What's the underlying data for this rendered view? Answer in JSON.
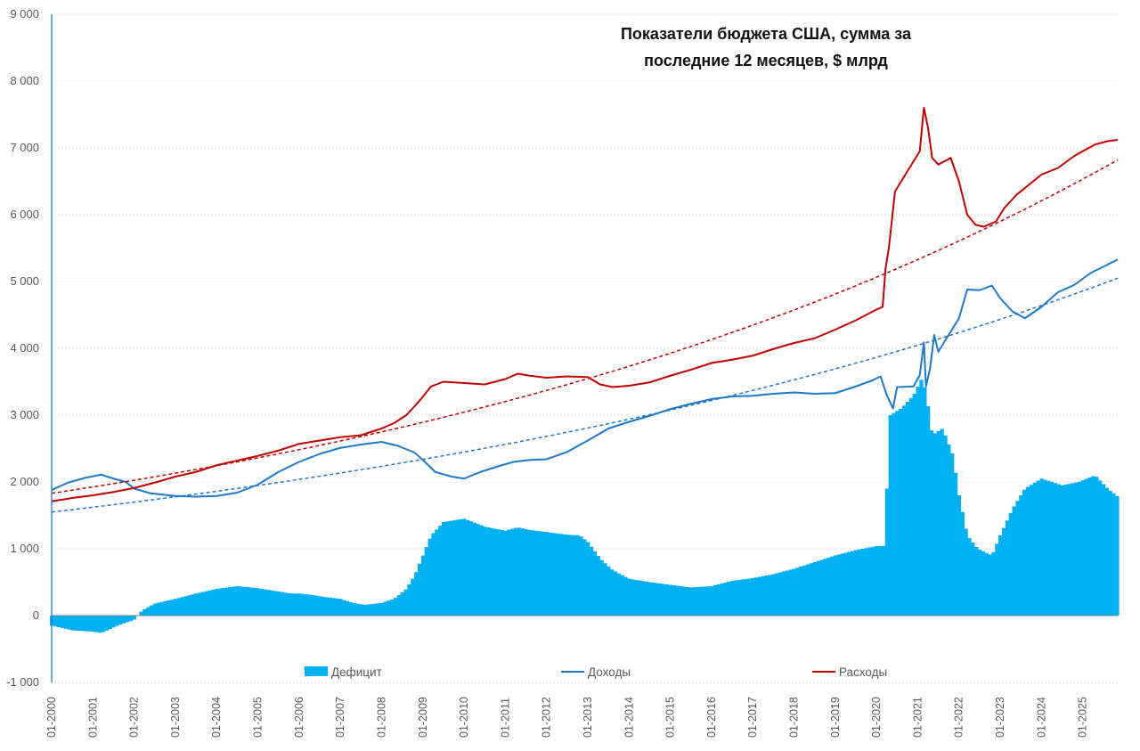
{
  "chart_data": {
    "type": "bar+line",
    "title_lines": [
      "Показатели бюджета США, сумма за",
      "последние 12 месяцев, $ млрд"
    ],
    "ylim": [
      -1000,
      9000
    ],
    "y_ticks": [
      {
        "value": 9000,
        "label": "9 000"
      },
      {
        "value": 8000,
        "label": "8 000"
      },
      {
        "value": 7000,
        "label": "7 000"
      },
      {
        "value": 6000,
        "label": "6 000"
      },
      {
        "value": 5000,
        "label": "5 000"
      },
      {
        "value": 4000,
        "label": "4 000"
      },
      {
        "value": 3000,
        "label": "3 000"
      },
      {
        "value": 2000,
        "label": "2 000"
      },
      {
        "value": 1000,
        "label": "1 000"
      },
      {
        "value": 0,
        "label": "0"
      },
      {
        "value": -1000,
        "label": "-1 000"
      }
    ],
    "x_range": [
      2000.0,
      2025.85
    ],
    "x_ticks": [
      {
        "value": 2000,
        "label": "01-2000"
      },
      {
        "value": 2001,
        "label": "01-2001"
      },
      {
        "value": 2002,
        "label": "01-2002"
      },
      {
        "value": 2003,
        "label": "01-2003"
      },
      {
        "value": 2004,
        "label": "01-2004"
      },
      {
        "value": 2005,
        "label": "01-2005"
      },
      {
        "value": 2006,
        "label": "01-2006"
      },
      {
        "value": 2007,
        "label": "01-2007"
      },
      {
        "value": 2008,
        "label": "01-2008"
      },
      {
        "value": 2009,
        "label": "01-2009"
      },
      {
        "value": 2010,
        "label": "01-2010"
      },
      {
        "value": 2011,
        "label": "01-2011"
      },
      {
        "value": 2012,
        "label": "01-2012"
      },
      {
        "value": 2013,
        "label": "01-2013"
      },
      {
        "value": 2014,
        "label": "01-2014"
      },
      {
        "value": 2015,
        "label": "01-2015"
      },
      {
        "value": 2016,
        "label": "01-2016"
      },
      {
        "value": 2017,
        "label": "01-2017"
      },
      {
        "value": 2018,
        "label": "01-2018"
      },
      {
        "value": 2019,
        "label": "01-2019"
      },
      {
        "value": 2020,
        "label": "01-2020"
      },
      {
        "value": 2021,
        "label": "01-2021"
      },
      {
        "value": 2022,
        "label": "01-2022"
      },
      {
        "value": 2023,
        "label": "01-2023"
      },
      {
        "value": 2024,
        "label": "01-2024"
      },
      {
        "value": 2025,
        "label": "01-2025"
      }
    ],
    "series": [
      {
        "name": "Дефицит",
        "kind": "bar",
        "color": "#00b0f0",
        "points": [
          [
            2000.0,
            -150
          ],
          [
            2000.5,
            -220
          ],
          [
            2001.0,
            -240
          ],
          [
            2001.2,
            -260
          ],
          [
            2001.6,
            -150
          ],
          [
            2002.0,
            -60
          ],
          [
            2002.2,
            80
          ],
          [
            2002.5,
            180
          ],
          [
            2003.0,
            250
          ],
          [
            2003.5,
            330
          ],
          [
            2004.0,
            400
          ],
          [
            2004.5,
            440
          ],
          [
            2005.0,
            410
          ],
          [
            2005.4,
            370
          ],
          [
            2005.8,
            330
          ],
          [
            2006.0,
            330
          ],
          [
            2006.3,
            310
          ],
          [
            2006.6,
            280
          ],
          [
            2007.0,
            250
          ],
          [
            2007.3,
            190
          ],
          [
            2007.6,
            160
          ],
          [
            2008.0,
            190
          ],
          [
            2008.3,
            250
          ],
          [
            2008.6,
            400
          ],
          [
            2008.8,
            600
          ],
          [
            2009.0,
            900
          ],
          [
            2009.2,
            1200
          ],
          [
            2009.5,
            1400
          ],
          [
            2010.0,
            1450
          ],
          [
            2010.5,
            1330
          ],
          [
            2011.0,
            1270
          ],
          [
            2011.3,
            1320
          ],
          [
            2011.6,
            1280
          ],
          [
            2012.0,
            1250
          ],
          [
            2012.5,
            1210
          ],
          [
            2012.8,
            1200
          ],
          [
            2013.0,
            1100
          ],
          [
            2013.3,
            850
          ],
          [
            2013.6,
            680
          ],
          [
            2014.0,
            550
          ],
          [
            2014.5,
            500
          ],
          [
            2015.0,
            460
          ],
          [
            2015.5,
            420
          ],
          [
            2016.0,
            440
          ],
          [
            2016.5,
            520
          ],
          [
            2017.0,
            560
          ],
          [
            2017.5,
            620
          ],
          [
            2018.0,
            700
          ],
          [
            2018.5,
            800
          ],
          [
            2019.0,
            900
          ],
          [
            2019.5,
            980
          ],
          [
            2020.0,
            1040
          ],
          [
            2020.2,
            1040
          ],
          [
            2020.25,
            1900
          ],
          [
            2020.33,
            3000
          ],
          [
            2020.6,
            3100
          ],
          [
            2020.9,
            3300
          ],
          [
            2021.1,
            3550
          ],
          [
            2021.2,
            3350
          ],
          [
            2021.35,
            2700
          ],
          [
            2021.6,
            2800
          ],
          [
            2021.85,
            2400
          ],
          [
            2022.0,
            1800
          ],
          [
            2022.2,
            1200
          ],
          [
            2022.45,
            1000
          ],
          [
            2022.8,
            900
          ],
          [
            2023.0,
            1200
          ],
          [
            2023.3,
            1600
          ],
          [
            2023.6,
            1900
          ],
          [
            2024.0,
            2050
          ],
          [
            2024.5,
            1950
          ],
          [
            2024.9,
            2000
          ],
          [
            2025.3,
            2100
          ],
          [
            2025.6,
            1900
          ],
          [
            2025.85,
            1780
          ]
        ]
      },
      {
        "name": "Доходы",
        "kind": "line",
        "color": "#1f78c8",
        "points": [
          [
            2000.0,
            1880
          ],
          [
            2000.4,
            1990
          ],
          [
            2000.8,
            2060
          ],
          [
            2001.2,
            2110
          ],
          [
            2001.5,
            2050
          ],
          [
            2001.8,
            2000
          ],
          [
            2002.0,
            1900
          ],
          [
            2002.4,
            1830
          ],
          [
            2003.0,
            1790
          ],
          [
            2003.5,
            1780
          ],
          [
            2004.0,
            1790
          ],
          [
            2004.5,
            1840
          ],
          [
            2005.0,
            1960
          ],
          [
            2005.5,
            2150
          ],
          [
            2006.0,
            2300
          ],
          [
            2006.5,
            2420
          ],
          [
            2007.0,
            2510
          ],
          [
            2007.5,
            2560
          ],
          [
            2008.0,
            2600
          ],
          [
            2008.4,
            2540
          ],
          [
            2008.8,
            2440
          ],
          [
            2009.0,
            2330
          ],
          [
            2009.3,
            2150
          ],
          [
            2009.7,
            2080
          ],
          [
            2010.0,
            2050
          ],
          [
            2010.4,
            2150
          ],
          [
            2010.8,
            2230
          ],
          [
            2011.2,
            2300
          ],
          [
            2011.6,
            2330
          ],
          [
            2012.0,
            2340
          ],
          [
            2012.5,
            2450
          ],
          [
            2013.0,
            2620
          ],
          [
            2013.5,
            2800
          ],
          [
            2014.0,
            2900
          ],
          [
            2014.5,
            2990
          ],
          [
            2015.0,
            3090
          ],
          [
            2015.5,
            3170
          ],
          [
            2016.0,
            3240
          ],
          [
            2016.5,
            3280
          ],
          [
            2017.0,
            3290
          ],
          [
            2017.5,
            3320
          ],
          [
            2018.0,
            3340
          ],
          [
            2018.5,
            3320
          ],
          [
            2019.0,
            3330
          ],
          [
            2019.5,
            3430
          ],
          [
            2019.9,
            3520
          ],
          [
            2020.1,
            3580
          ],
          [
            2020.25,
            3300
          ],
          [
            2020.4,
            3100
          ],
          [
            2020.5,
            3420
          ],
          [
            2020.9,
            3430
          ],
          [
            2021.05,
            3600
          ],
          [
            2021.15,
            4090
          ],
          [
            2021.2,
            3430
          ],
          [
            2021.3,
            3700
          ],
          [
            2021.4,
            4200
          ],
          [
            2021.5,
            3950
          ],
          [
            2021.8,
            4250
          ],
          [
            2022.0,
            4450
          ],
          [
            2022.2,
            4880
          ],
          [
            2022.5,
            4870
          ],
          [
            2022.8,
            4940
          ],
          [
            2023.0,
            4750
          ],
          [
            2023.3,
            4550
          ],
          [
            2023.6,
            4450
          ],
          [
            2024.0,
            4620
          ],
          [
            2024.4,
            4840
          ],
          [
            2024.8,
            4950
          ],
          [
            2025.2,
            5130
          ],
          [
            2025.5,
            5220
          ],
          [
            2025.85,
            5330
          ]
        ]
      },
      {
        "name": "Расходы",
        "kind": "line",
        "color": "#c00000",
        "points": [
          [
            2000.0,
            1710
          ],
          [
            2000.5,
            1760
          ],
          [
            2001.0,
            1800
          ],
          [
            2001.5,
            1850
          ],
          [
            2002.0,
            1910
          ],
          [
            2002.5,
            1990
          ],
          [
            2003.0,
            2080
          ],
          [
            2003.5,
            2150
          ],
          [
            2004.0,
            2250
          ],
          [
            2004.5,
            2320
          ],
          [
            2005.0,
            2390
          ],
          [
            2005.5,
            2470
          ],
          [
            2006.0,
            2570
          ],
          [
            2006.5,
            2620
          ],
          [
            2007.0,
            2670
          ],
          [
            2007.5,
            2700
          ],
          [
            2008.0,
            2800
          ],
          [
            2008.3,
            2880
          ],
          [
            2008.6,
            3000
          ],
          [
            2008.9,
            3200
          ],
          [
            2009.2,
            3430
          ],
          [
            2009.5,
            3500
          ],
          [
            2010.0,
            3480
          ],
          [
            2010.5,
            3460
          ],
          [
            2011.0,
            3540
          ],
          [
            2011.3,
            3620
          ],
          [
            2011.6,
            3590
          ],
          [
            2012.0,
            3560
          ],
          [
            2012.5,
            3580
          ],
          [
            2013.0,
            3570
          ],
          [
            2013.3,
            3460
          ],
          [
            2013.6,
            3420
          ],
          [
            2014.0,
            3440
          ],
          [
            2014.5,
            3490
          ],
          [
            2015.0,
            3590
          ],
          [
            2015.5,
            3680
          ],
          [
            2016.0,
            3780
          ],
          [
            2016.5,
            3830
          ],
          [
            2017.0,
            3890
          ],
          [
            2017.5,
            3990
          ],
          [
            2018.0,
            4080
          ],
          [
            2018.5,
            4150
          ],
          [
            2019.0,
            4280
          ],
          [
            2019.5,
            4420
          ],
          [
            2020.0,
            4580
          ],
          [
            2020.15,
            4620
          ],
          [
            2020.22,
            5200
          ],
          [
            2020.3,
            5500
          ],
          [
            2020.45,
            6350
          ],
          [
            2020.7,
            6600
          ],
          [
            2020.9,
            6800
          ],
          [
            2021.05,
            6950
          ],
          [
            2021.15,
            7600
          ],
          [
            2021.25,
            7300
          ],
          [
            2021.35,
            6850
          ],
          [
            2021.5,
            6750
          ],
          [
            2021.8,
            6850
          ],
          [
            2022.0,
            6500
          ],
          [
            2022.2,
            6000
          ],
          [
            2022.4,
            5850
          ],
          [
            2022.6,
            5820
          ],
          [
            2022.9,
            5900
          ],
          [
            2023.1,
            6100
          ],
          [
            2023.4,
            6300
          ],
          [
            2023.7,
            6450
          ],
          [
            2024.0,
            6600
          ],
          [
            2024.4,
            6700
          ],
          [
            2024.8,
            6880
          ],
          [
            2025.0,
            6950
          ],
          [
            2025.3,
            7050
          ],
          [
            2025.6,
            7100
          ],
          [
            2025.85,
            7120
          ]
        ]
      },
      {
        "name": "Тренд доходов",
        "kind": "trend",
        "color": "#1f78c8",
        "points": [
          [
            2000.0,
            1550
          ],
          [
            2025.85,
            5050
          ]
        ]
      },
      {
        "name": "Тренд расходов",
        "kind": "trend",
        "color": "#c00000",
        "points": [
          [
            2000.0,
            1830
          ],
          [
            2025.85,
            6820
          ]
        ]
      }
    ],
    "legend": [
      {
        "label": "Дефицит",
        "marker": "box",
        "color": "#00b0f0"
      },
      {
        "label": "Доходы",
        "marker": "line",
        "color": "#1f78c8"
      },
      {
        "label": "Расходы",
        "marker": "line",
        "color": "#c00000"
      }
    ],
    "legend_position": "bottom",
    "grid": true
  }
}
